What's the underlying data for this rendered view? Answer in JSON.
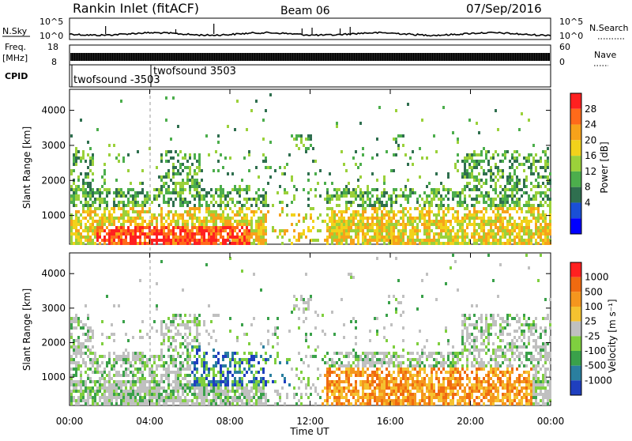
{
  "header": {
    "title": "Rankin Inlet (fitACF)",
    "beam": "Beam 06",
    "date": "07/Sep/2016"
  },
  "status_panels": {
    "nsky_label": "N.Sky",
    "nsearch_label": "N.Search",
    "nsky_ticks": [
      "10^5",
      "10^0"
    ],
    "nsky_right_ticks": [
      "10^5",
      "10^0"
    ],
    "freq_label": "Freq.",
    "freq_unit": "[MHz]",
    "freq_ticks": [
      "18",
      "8"
    ],
    "nave_label": "Nave",
    "nave_ticks": [
      "60",
      "0"
    ],
    "cpid_label": "CPID",
    "cpid_entries": [
      {
        "text": "twofsound -3503",
        "time_h": 0.0
      },
      {
        "text": "twofsound 3503",
        "time_h": 4.0
      }
    ]
  },
  "chart_data": [
    {
      "type": "heatmap",
      "name": "power",
      "ylabel": "Slant Range [km]",
      "y_ticks": [
        1000,
        2000,
        3000,
        4000
      ],
      "ylim": [
        180,
        4600
      ],
      "x_ticks_h": [
        0,
        4,
        8,
        12,
        16,
        20,
        24
      ],
      "xlim_h": [
        0,
        24
      ],
      "colorbar": {
        "label": "Power [dB]",
        "ticks": [
          "28",
          "24",
          "20",
          "16",
          "12",
          "8",
          "4"
        ],
        "colors": [
          "#0000ff",
          "#1a4fd6",
          "#2f6f4f",
          "#4cae4c",
          "#9bd13a",
          "#f2d21b",
          "#f7a21a",
          "#ff6a1a",
          "#ff2020"
        ]
      }
    },
    {
      "type": "heatmap",
      "name": "velocity",
      "ylabel": "Slant Range [km]",
      "y_ticks": [
        1000,
        2000,
        3000,
        4000
      ],
      "ylim": [
        180,
        4600
      ],
      "x_ticks_h": [
        0,
        4,
        8,
        12,
        16,
        20,
        24
      ],
      "xlim_h": [
        0,
        24
      ],
      "xlabel": "Time UT",
      "x_tick_labels": [
        "00:00",
        "04:00",
        "08:00",
        "12:00",
        "16:00",
        "20:00",
        "00:00"
      ],
      "colorbar": {
        "label": "Velocity [m s⁻¹]",
        "ticks": [
          "1000",
          "500",
          "100",
          "25",
          "-25",
          "-100",
          "-500",
          "-1000"
        ],
        "colors": [
          "#1f3fbf",
          "#2a7f9f",
          "#3aa14a",
          "#7fcf3f",
          "#c0c0c0",
          "#f5c230",
          "#f5961e",
          "#f06a10",
          "#ff2020"
        ]
      }
    }
  ]
}
